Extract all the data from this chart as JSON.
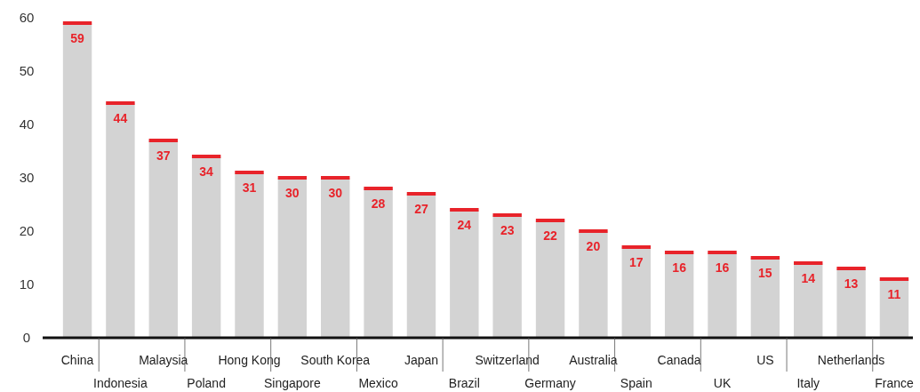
{
  "chart_data": {
    "type": "bar",
    "categories": [
      "China",
      "Indonesia",
      "Malaysia",
      "Poland",
      "Hong Kong",
      "Singapore",
      "South Korea",
      "Mexico",
      "Japan",
      "Brazil",
      "Switzerland",
      "Germany",
      "Australia",
      "Spain",
      "Canada",
      "UK",
      "US",
      "Italy",
      "Netherlands",
      "France"
    ],
    "values": [
      59,
      44,
      37,
      34,
      31,
      30,
      30,
      28,
      27,
      24,
      23,
      22,
      20,
      17,
      16,
      16,
      15,
      14,
      13,
      11
    ],
    "color": "#d3d3d3",
    "data_labels": true,
    "ylim": [
      0,
      60
    ],
    "yticks": [
      0,
      10,
      20,
      30,
      40,
      50,
      60
    ],
    "grid": false
  }
}
